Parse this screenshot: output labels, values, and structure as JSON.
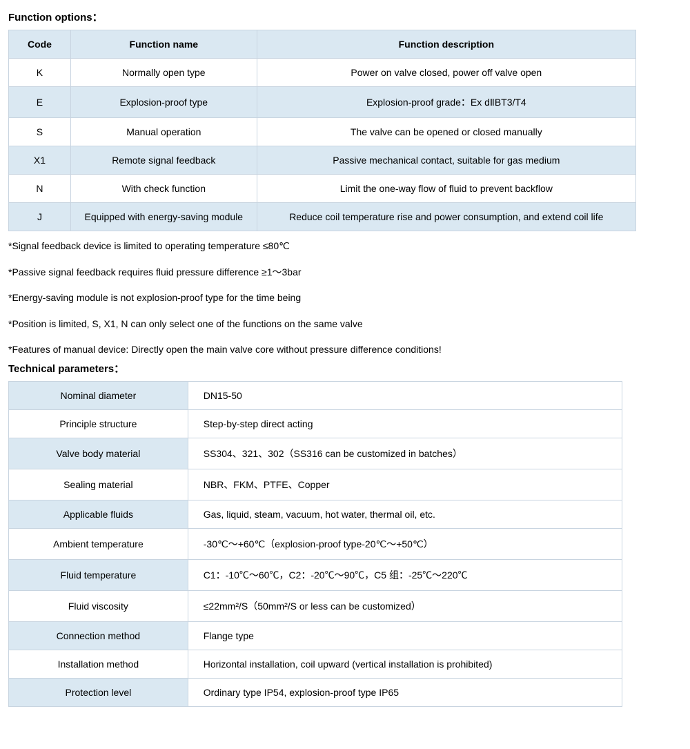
{
  "section1": {
    "title": "Function options：",
    "table": {
      "headers": [
        "Code",
        "Function name",
        "Function description"
      ],
      "rows": [
        {
          "code": "K",
          "name": "Normally open type",
          "desc": "Power on valve closed, power off valve open"
        },
        {
          "code": "E",
          "name": "Explosion-proof type",
          "desc": "Explosion-proof grade：Ex dⅡBT3/T4"
        },
        {
          "code": "S",
          "name": "Manual operation",
          "desc": "The valve can be opened or closed manually"
        },
        {
          "code": "X1",
          "name": "Remote signal feedback",
          "desc": "Passive mechanical contact, suitable for gas medium"
        },
        {
          "code": "N",
          "name": "With check function",
          "desc": "Limit the one-way flow of fluid to prevent backflow"
        },
        {
          "code": "J",
          "name": "Equipped with energy-saving module",
          "desc": "Reduce coil temperature rise and power consumption, and extend coil life"
        }
      ],
      "col_widths": {
        "code": 90,
        "name": 270,
        "desc": 550
      }
    },
    "notes": [
      "*Signal feedback device is limited to operating temperature ≤80℃",
      "*Passive signal feedback requires fluid pressure difference ≥1～3bar",
      "*Energy-saving module is not explosion-proof type for the time being",
      "*Position is limited, S, X1, N can only select one of the functions on the same valve",
      "*Features of manual device: Directly open the main valve core without pressure difference conditions!"
    ]
  },
  "section2": {
    "title": "Technical parameters：",
    "table": {
      "rows": [
        {
          "label": "Nominal diameter",
          "value": "DN15-50"
        },
        {
          "label": "Principle structure",
          "value": "Step-by-step direct acting"
        },
        {
          "label": "Valve body material",
          "value": "SS304、321、302（SS316 can be customized in batches）"
        },
        {
          "label": "Sealing material",
          "value": "NBR、FKM、PTFE、Copper"
        },
        {
          "label": "Applicable fluids",
          "value": "Gas, liquid, steam, vacuum, hot water, thermal oil, etc."
        },
        {
          "label": "Ambient temperature",
          "value": "-30℃～+60℃（explosion-proof type-20℃～+50℃）"
        },
        {
          "label": "Fluid temperature",
          "value": "C1：-10℃～60℃，C2：-20℃～90℃，C5 组：-25℃～220℃"
        },
        {
          "label": "Fluid viscosity",
          "value": "≤22mm²/S（50mm²/S or less can be customized）"
        },
        {
          "label": "Connection method",
          "value": "Flange type"
        },
        {
          "label": "Installation method",
          "value": "Horizontal installation, coil upward (vertical installation is prohibited)"
        },
        {
          "label": "Protection level",
          "value": "Ordinary type IP54, explosion-proof type IP65"
        }
      ],
      "col_widths": {
        "label": 260,
        "value": 630
      }
    }
  },
  "styling": {
    "font_family": "Arial, Microsoft YaHei",
    "body_font_size": 14,
    "title_font_size": 15,
    "text_color": "#000000",
    "background_color": "#ffffff",
    "table_border_color": "#c8d4e0",
    "table_header_bg": "#dae8f2",
    "table_stripe_bg": "#dae8f2",
    "cell_padding_v": 12,
    "cell_padding_h": 8,
    "note_line_spacing": 18,
    "function_table_width": 910,
    "params_table_width": 890
  }
}
